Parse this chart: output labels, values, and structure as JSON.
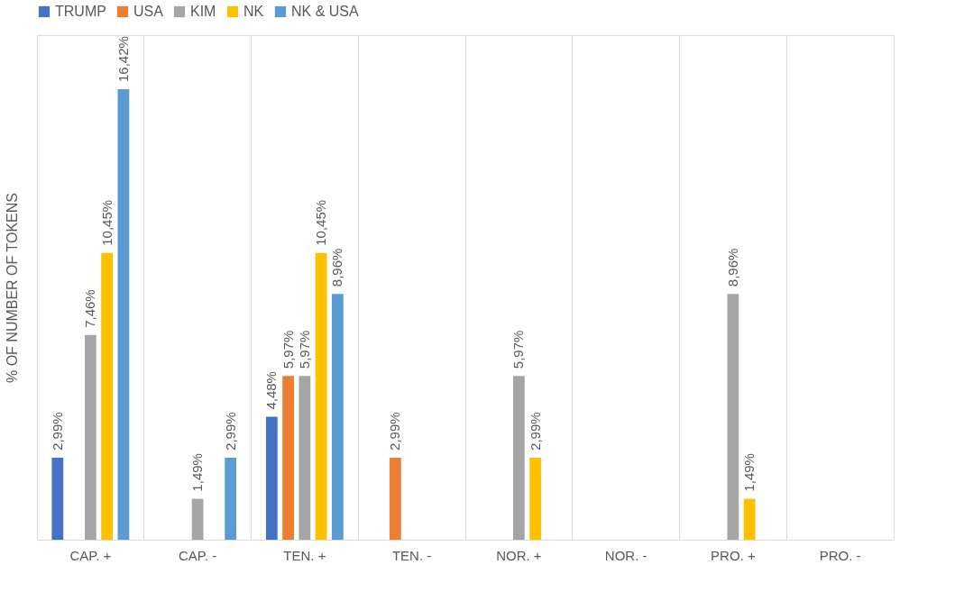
{
  "chart_data": {
    "type": "bar",
    "ylabel": "% OF NUMBER OF TOKENS",
    "categories": [
      "CAP. +",
      "CAP. -",
      "TEN. +",
      "TEN. -",
      "NOR. +",
      "NOR. -",
      "PRO. +",
      "PRO. -"
    ],
    "series": [
      {
        "name": "TRUMP",
        "color": "#4472c4",
        "values": [
          2.99,
          null,
          4.48,
          null,
          null,
          null,
          null,
          null
        ],
        "value_labels": [
          "2,99%",
          null,
          "4,48%",
          null,
          null,
          null,
          null,
          null
        ]
      },
      {
        "name": "USA",
        "color": "#ed7d31",
        "values": [
          null,
          null,
          5.97,
          2.99,
          null,
          null,
          null,
          null
        ],
        "value_labels": [
          null,
          null,
          "5,97%",
          "2,99%",
          null,
          null,
          null,
          null
        ]
      },
      {
        "name": "KIM",
        "color": "#a5a5a5",
        "values": [
          7.46,
          1.49,
          5.97,
          null,
          5.97,
          null,
          8.96,
          null
        ],
        "value_labels": [
          "7,46%",
          "1,49%",
          "5,97%",
          null,
          "5,97%",
          null,
          "8,96%",
          null
        ]
      },
      {
        "name": "NK",
        "color": "#ffc000",
        "values": [
          10.45,
          null,
          10.45,
          null,
          2.99,
          null,
          1.49,
          null
        ],
        "value_labels": [
          "10,45%",
          null,
          "10,45%",
          null,
          "2,99%",
          null,
          "1,49%",
          null
        ]
      },
      {
        "name": "NK & USA",
        "color": "#5b9bd5",
        "values": [
          16.42,
          2.99,
          8.96,
          null,
          null,
          null,
          null,
          null
        ],
        "value_labels": [
          "16,42%",
          "2,99%",
          "8,96%",
          null,
          null,
          null,
          null,
          null
        ]
      }
    ],
    "grid": "x",
    "legend": "top"
  }
}
